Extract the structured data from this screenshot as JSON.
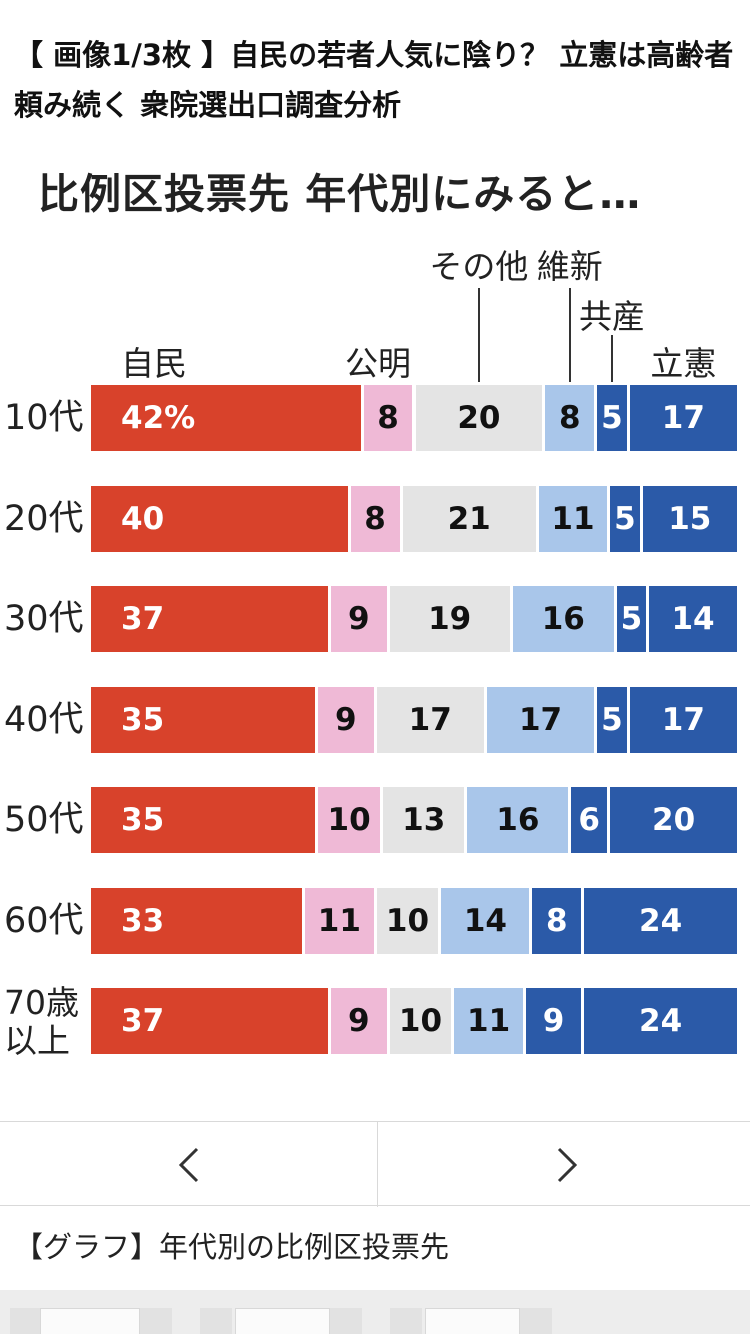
{
  "headline": "【 画像1/3枚 】自民の若者人気に陰り？ 立憲は高齢者頼み続く 衆院選出口調査分析",
  "chart_data": {
    "type": "bar",
    "stacked": true,
    "orientation": "horizontal",
    "title": "比例区投票先 年代別にみると…",
    "categories": [
      "10代",
      "20代",
      "30代",
      "40代",
      "50代",
      "60代",
      "70歳以上"
    ],
    "series": [
      {
        "name": "自民",
        "color": "#d8422b",
        "label_color": "#ffffff",
        "values": [
          42,
          40,
          37,
          35,
          35,
          33,
          37
        ]
      },
      {
        "name": "公明",
        "color": "#efb9d6",
        "label_color": "#111111",
        "values": [
          8,
          8,
          9,
          9,
          10,
          11,
          9
        ]
      },
      {
        "name": "その他",
        "color": "#e4e4e4",
        "label_color": "#111111",
        "values": [
          20,
          21,
          19,
          17,
          13,
          10,
          10
        ]
      },
      {
        "name": "維新",
        "color": "#a9c6ea",
        "label_color": "#111111",
        "values": [
          8,
          11,
          16,
          17,
          16,
          14,
          11
        ]
      },
      {
        "name": "共産",
        "color": "#2b5aa8",
        "label_color": "#ffffff",
        "values": [
          5,
          5,
          5,
          5,
          6,
          8,
          9
        ]
      },
      {
        "name": "立憲",
        "color": "#2b5aa8",
        "label_color": "#ffffff",
        "values": [
          17,
          15,
          14,
          17,
          20,
          24,
          24
        ]
      }
    ],
    "first_value_suffix": "%",
    "unit": "%",
    "legend_placement": "top"
  },
  "nav": {
    "prev_icon": "chevron-left-icon",
    "next_icon": "chevron-right-icon"
  },
  "caption": "【グラフ】年代別の比例区投票先"
}
